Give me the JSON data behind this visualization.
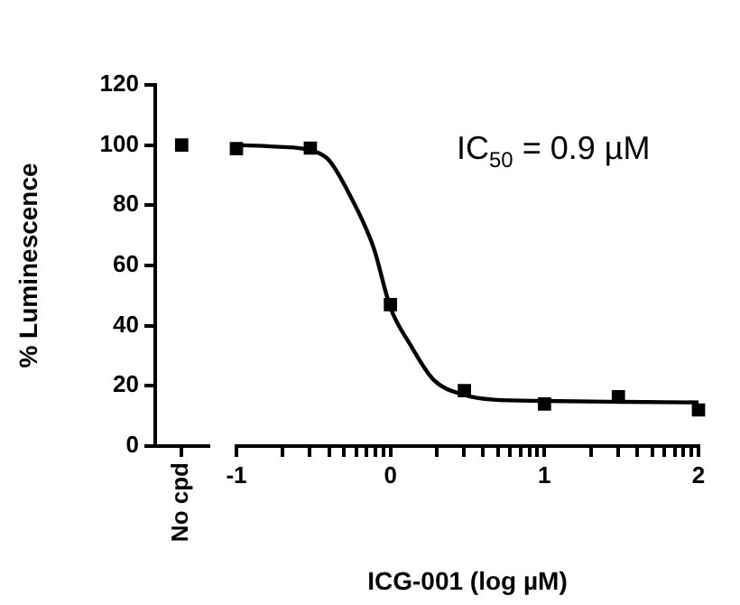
{
  "chart_data": [
    {
      "type": "scatter",
      "categories": [
        "No cpd"
      ],
      "values": [
        100
      ],
      "color": "#000000",
      "ylabel": "% Luminescence",
      "ylim": [
        0,
        120
      ],
      "yticks": [
        0,
        20,
        40,
        60,
        80,
        100,
        120
      ],
      "marker": "square"
    },
    {
      "type": "scatter",
      "xlabel": "ICG-001 (log µM)",
      "xlim": [
        -1,
        2
      ],
      "xticks": [
        -1,
        {
          "value": -0.699,
          "label": null
        },
        {
          "value": -0.523,
          "label": null
        },
        {
          "value": -0.398,
          "label": null
        },
        {
          "value": -0.301,
          "label": null
        },
        {
          "value": -0.222,
          "label": null
        },
        {
          "value": -0.155,
          "label": null
        },
        {
          "value": -0.097,
          "label": null
        },
        {
          "value": -0.046,
          "label": null
        },
        0,
        {
          "value": 0.301,
          "label": null
        },
        {
          "value": 0.477,
          "label": null
        },
        {
          "value": 0.602,
          "label": null
        },
        {
          "value": 0.699,
          "label": null
        },
        {
          "value": 0.778,
          "label": null
        },
        {
          "value": 0.845,
          "label": null
        },
        {
          "value": 0.903,
          "label": null
        },
        {
          "value": 0.954,
          "label": null
        },
        1,
        {
          "value": 1.301,
          "label": null
        },
        {
          "value": 1.477,
          "label": null
        },
        {
          "value": 1.602,
          "label": null
        },
        {
          "value": 1.699,
          "label": null
        },
        {
          "value": 1.778,
          "label": null
        },
        {
          "value": 1.845,
          "label": null
        },
        {
          "value": 1.903,
          "label": null
        },
        {
          "value": 1.954,
          "label": null
        },
        2
      ],
      "ylim": [
        0,
        120
      ],
      "yticks": [
        0,
        20,
        40,
        60,
        80,
        100,
        120
      ],
      "tick_labels": "x",
      "marker": "square",
      "annotations": [
        "IC$_{50}$ = 0.9 µM"
      ],
      "series": [
        {
          "type": "scatter",
          "color": "#000000",
          "x": [
            -1,
            -0.52,
            0,
            0.48,
            1,
            1.48,
            2
          ],
          "values": [
            98.8,
            99,
            47,
            18.4,
            14,
            16.4,
            12
          ]
        },
        {
          "type": "line",
          "marker": "none",
          "color": "#000000",
          "x": [
            -1,
            -0.75,
            -0.5,
            -0.4,
            -0.27,
            -0.11,
            0,
            0.125,
            0.28,
            0.48,
            0.67,
            1,
            1.5,
            2
          ],
          "values": [
            100,
            99.5,
            98,
            95,
            84,
            66,
            46,
            34,
            22,
            17,
            15.4,
            15,
            14.7,
            14.5
          ]
        }
      ]
    }
  ]
}
